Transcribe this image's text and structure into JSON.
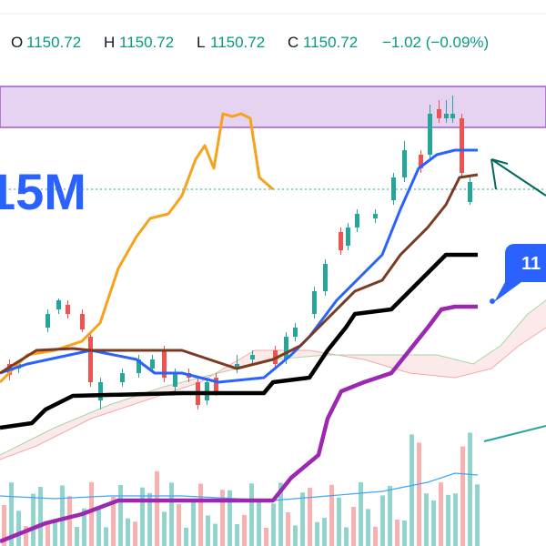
{
  "legend": {
    "open_label": "O",
    "open": "1150.72",
    "high_label": "H",
    "high": "1150.72",
    "low_label": "L",
    "low": "1150.72",
    "close_label": "C",
    "close": "1150.72",
    "change": "−1.02 (−0.09%)"
  },
  "overlay_text": "15M",
  "price_badge": "11"
}
